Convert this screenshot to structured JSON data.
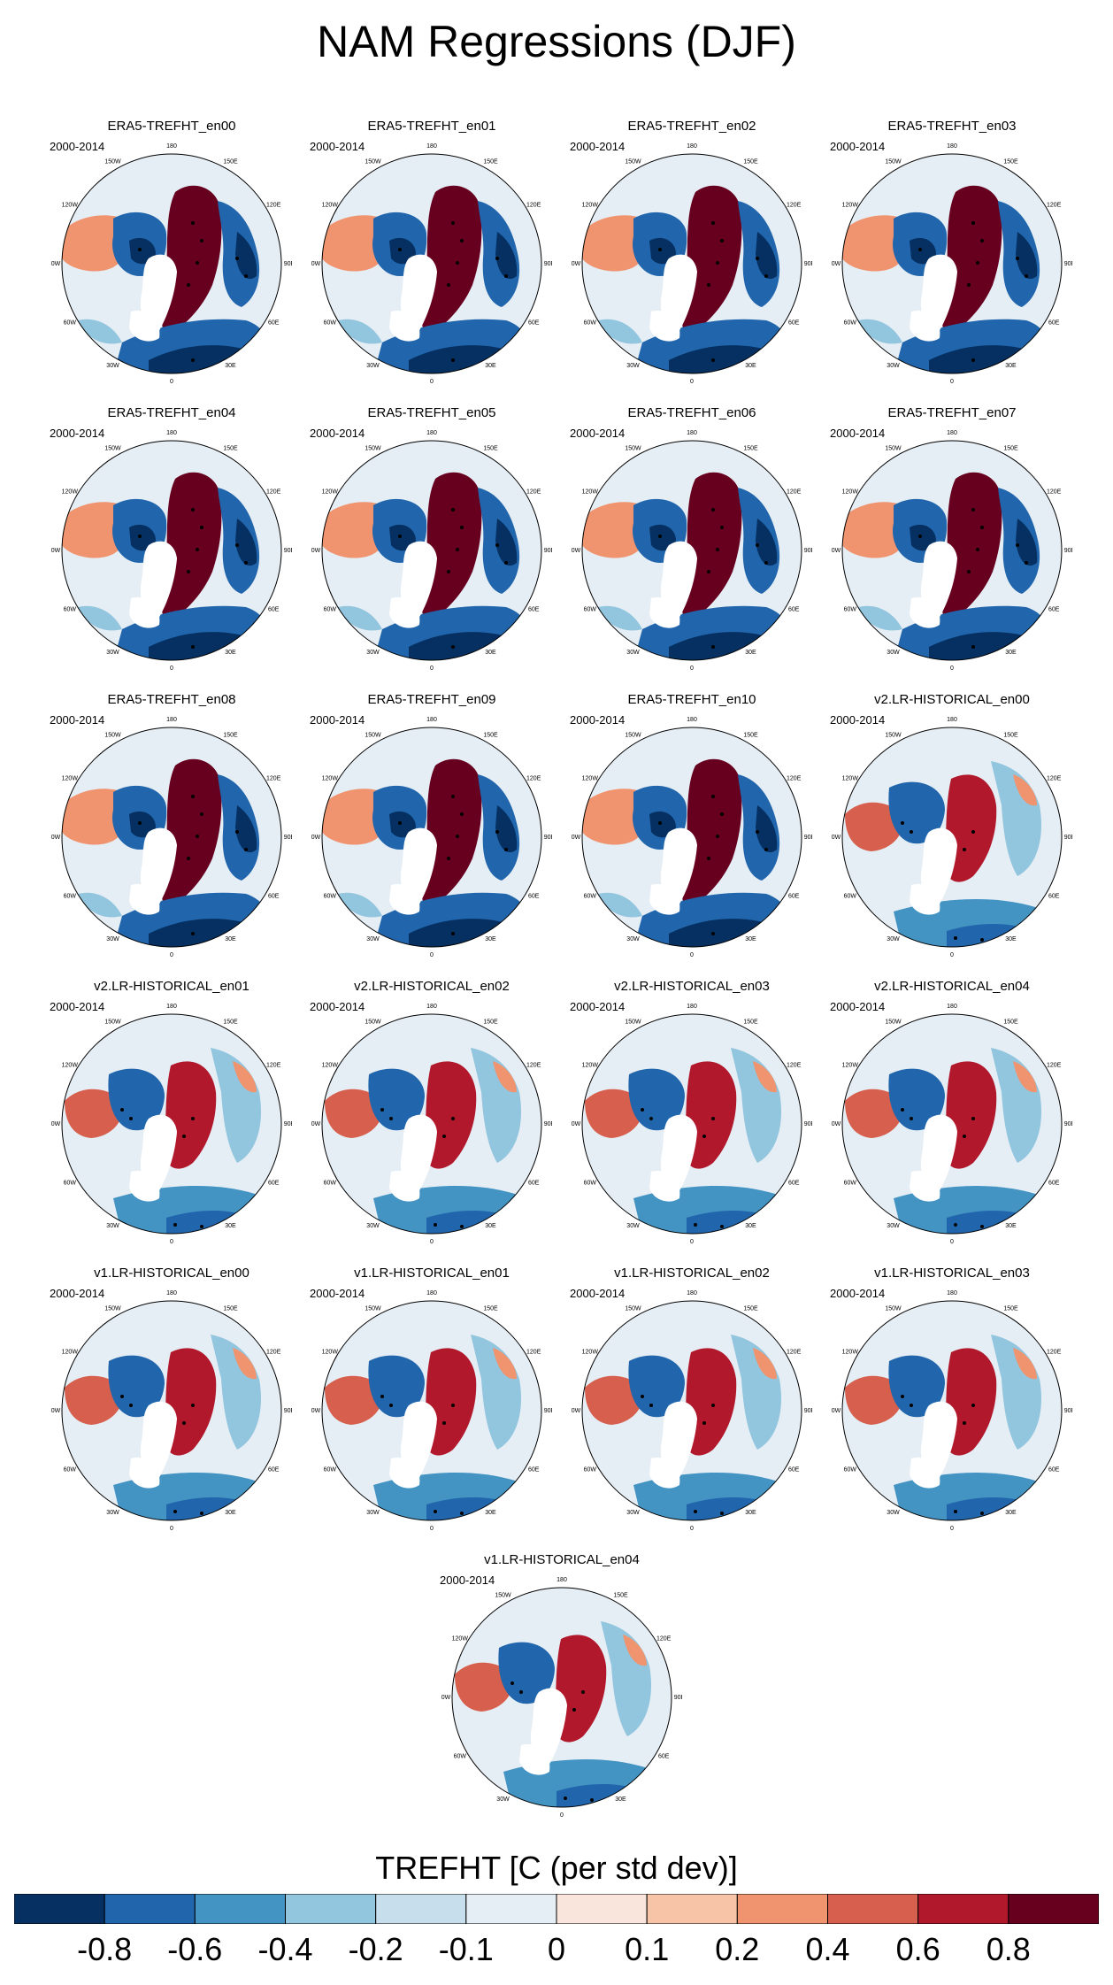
{
  "chart_data": {
    "type": "heatmap",
    "title": "NAM Regressions (DJF)",
    "period": "2000-2014",
    "projection": "north polar stereographic",
    "stippling": "significance dots",
    "lon_labels": [
      "180",
      "150E",
      "120E",
      "90E",
      "60E",
      "30E",
      "0",
      "30W",
      "60W",
      "90W",
      "120W",
      "150W"
    ],
    "panels": [
      {
        "title": "ERA5-TREFHT_en00",
        "pattern": "era5"
      },
      {
        "title": "ERA5-TREFHT_en01",
        "pattern": "era5"
      },
      {
        "title": "ERA5-TREFHT_en02",
        "pattern": "era5"
      },
      {
        "title": "ERA5-TREFHT_en03",
        "pattern": "era5"
      },
      {
        "title": "ERA5-TREFHT_en04",
        "pattern": "era5"
      },
      {
        "title": "ERA5-TREFHT_en05",
        "pattern": "era5"
      },
      {
        "title": "ERA5-TREFHT_en06",
        "pattern": "era5"
      },
      {
        "title": "ERA5-TREFHT_en07",
        "pattern": "era5"
      },
      {
        "title": "ERA5-TREFHT_en08",
        "pattern": "era5"
      },
      {
        "title": "ERA5-TREFHT_en09",
        "pattern": "era5"
      },
      {
        "title": "ERA5-TREFHT_en10",
        "pattern": "era5"
      },
      {
        "title": "v2.LR-HISTORICAL_en00",
        "pattern": "model"
      },
      {
        "title": "v2.LR-HISTORICAL_en01",
        "pattern": "model"
      },
      {
        "title": "v2.LR-HISTORICAL_en02",
        "pattern": "model"
      },
      {
        "title": "v2.LR-HISTORICAL_en03",
        "pattern": "model"
      },
      {
        "title": "v2.LR-HISTORICAL_en04",
        "pattern": "model"
      },
      {
        "title": "v1.LR-HISTORICAL_en00",
        "pattern": "model"
      },
      {
        "title": "v1.LR-HISTORICAL_en01",
        "pattern": "model"
      },
      {
        "title": "v1.LR-HISTORICAL_en02",
        "pattern": "model"
      },
      {
        "title": "v1.LR-HISTORICAL_en03",
        "pattern": "model"
      },
      {
        "title": "v1.LR-HISTORICAL_en04",
        "pattern": "model"
      }
    ],
    "colorbar": {
      "title": "TREFHT [C (per std dev)]",
      "levels": [
        "-0.8",
        "-0.6",
        "-0.4",
        "-0.2",
        "-0.1",
        "0",
        "0.1",
        "0.2",
        "0.4",
        "0.6",
        "0.8"
      ],
      "colors": [
        "#053061",
        "#2166ac",
        "#4393c3",
        "#92c5de",
        "#c7deed",
        "#e6eef5",
        "#fae5dc",
        "#f7c4a8",
        "#f0946f",
        "#d6604d",
        "#b2182b",
        "#67001f"
      ]
    }
  }
}
